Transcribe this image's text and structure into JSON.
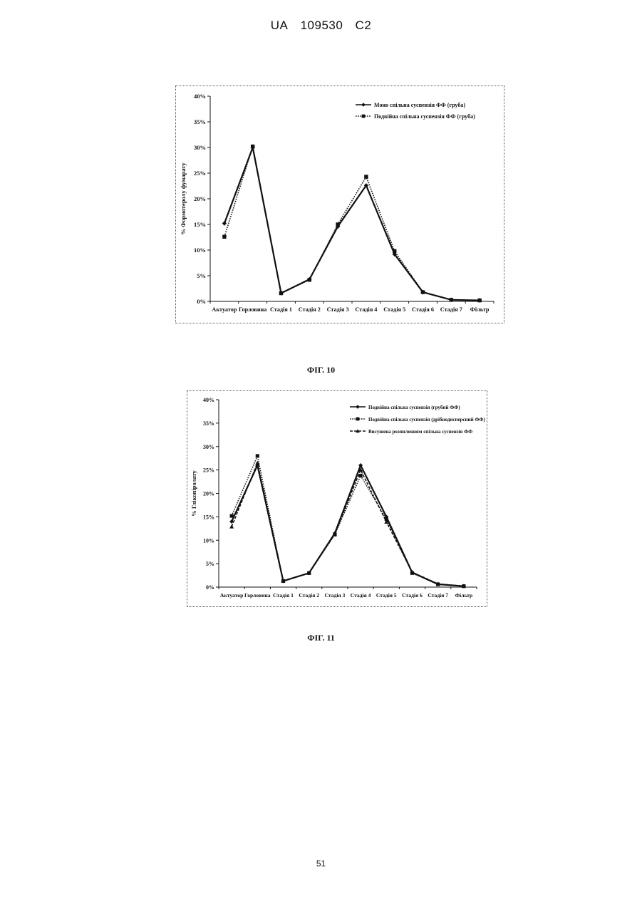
{
  "header": {
    "country": "UA",
    "number": "109530",
    "kind": "C2"
  },
  "figures": [
    {
      "caption": "ФІГ. 10"
    },
    {
      "caption": "ФІГ. 11"
    }
  ],
  "page_number": "51",
  "chart_data": [
    {
      "type": "line",
      "title": "",
      "xlabel": "",
      "ylabel": "% Формотеролу фумарату",
      "ylim": [
        0,
        40
      ],
      "y_ticks": [
        "0%",
        "5%",
        "10%",
        "15%",
        "20%",
        "25%",
        "30%",
        "35%",
        "40%"
      ],
      "categories": [
        "Актуатор",
        "Горловина",
        "Стадія 1",
        "Стадія 2",
        "Стадія 3",
        "Стадія 4",
        "Стадія 5",
        "Стадія 6",
        "Стадія 7",
        "Фільтр"
      ],
      "legend_position": "top-right",
      "grid": false,
      "series": [
        {
          "name": "Моно спільна суспензія ФФ (груба)",
          "marker": "diamond",
          "dash": "solid",
          "values": [
            15.2,
            30.0,
            1.6,
            4.3,
            14.6,
            22.6,
            9.2,
            1.8,
            0.3,
            0.2
          ]
        },
        {
          "name": "Подвійна спільна суспензія ФФ (груба)",
          "marker": "square",
          "dash": "dotted",
          "values": [
            12.6,
            30.2,
            1.6,
            4.2,
            15.0,
            24.3,
            9.8,
            1.8,
            0.3,
            0.2
          ]
        }
      ]
    },
    {
      "type": "line",
      "title": "",
      "xlabel": "",
      "ylabel": "% Глікопіролату",
      "ylim": [
        0,
        40
      ],
      "y_ticks": [
        "0%",
        "5%",
        "10%",
        "15%",
        "20%",
        "25%",
        "30%",
        "35%",
        "40%"
      ],
      "categories": [
        "Актуатор",
        "Горловина",
        "Стадія 1",
        "Стадія 2",
        "Стадія 3",
        "Стадія 4",
        "Стадія 5",
        "Стадія 6",
        "Стадія 7",
        "Фільтр"
      ],
      "legend_position": "top-right",
      "grid": false,
      "series": [
        {
          "name": "Подвійна спільна суспензія (грубий ФФ)",
          "marker": "diamond",
          "dash": "solid",
          "values": [
            14.0,
            26.0,
            1.3,
            3.0,
            11.5,
            26.0,
            15.0,
            3.1,
            0.6,
            0.2
          ]
        },
        {
          "name": "Подвійна спільна суспензія (дрібнодисперсний ФФ)",
          "marker": "square",
          "dash": "dotted",
          "values": [
            15.2,
            28.0,
            1.3,
            3.0,
            11.2,
            23.8,
            14.5,
            3.0,
            0.6,
            0.2
          ]
        },
        {
          "name": "Висушена розпиленням спільна суспензія ФФ",
          "marker": "triangle",
          "dash": "dashed",
          "values": [
            12.9,
            26.5,
            1.3,
            3.0,
            11.3,
            25.0,
            13.9,
            3.2,
            0.7,
            0.2
          ]
        }
      ]
    }
  ]
}
